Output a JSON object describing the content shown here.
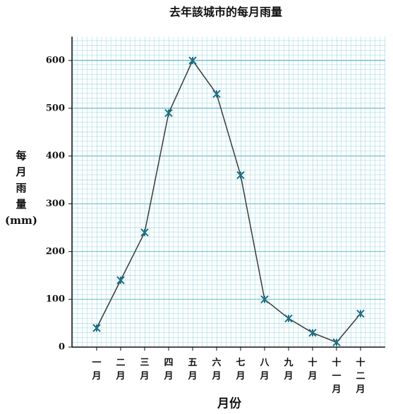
{
  "chart_data": {
    "type": "line",
    "title": "去年該城市的每月雨量",
    "x_label": "月份",
    "y_label": "每月雨量(mm)",
    "categories": [
      "一月",
      "二月",
      "三月",
      "四月",
      "五月",
      "六月",
      "七月",
      "八月",
      "九月",
      "十月",
      "十一月",
      "十二月"
    ],
    "values": [
      40,
      140,
      240,
      490,
      600,
      530,
      360,
      100,
      60,
      30,
      10,
      70
    ],
    "color": "#1b6f82",
    "line_color": "#3a3a3a",
    "ylim": [
      0,
      650
    ],
    "yticks": [
      0,
      100,
      200,
      300,
      400,
      500,
      600
    ],
    "grid": true
  }
}
